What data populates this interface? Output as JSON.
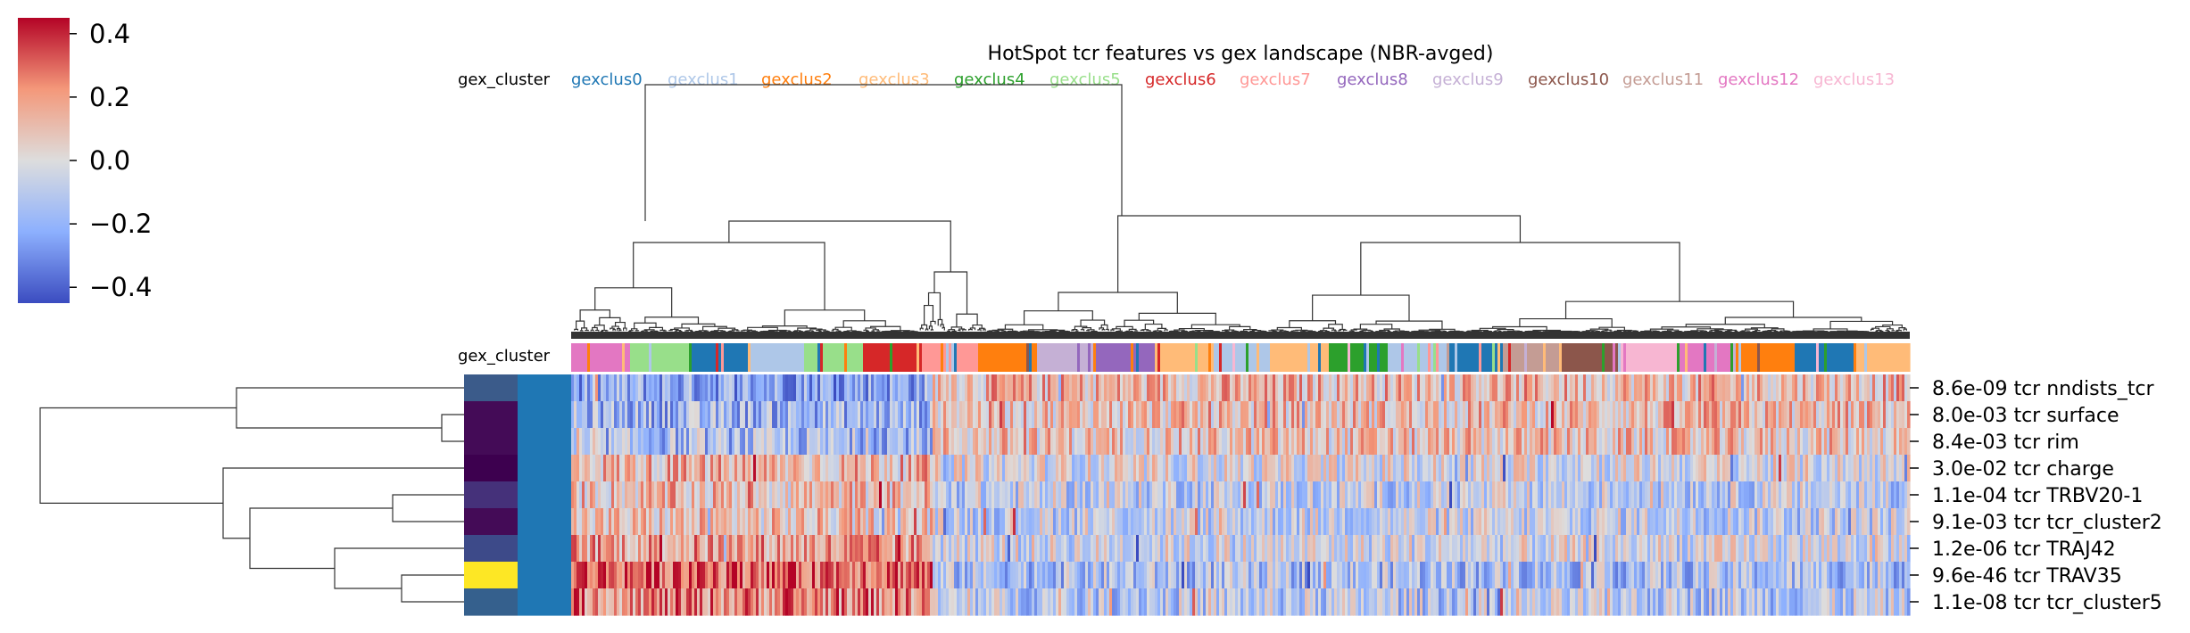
{
  "chart_data": {
    "type": "heatmap",
    "title": "HotSpot tcr features vs gex landscape (NBR-avged)",
    "colorbar": {
      "ticks": [
        "0.4",
        "0.2",
        "0.0",
        "−0.2",
        "−0.4"
      ],
      "tick_values": [
        0.4,
        0.2,
        0.0,
        -0.2,
        -0.4
      ],
      "range": [
        -0.45,
        0.45
      ],
      "colormap": "coolwarm"
    },
    "column_annotation": {
      "label": "gex_cluster",
      "legend": [
        {
          "name": "gexclus0",
          "color": "#1f77b4"
        },
        {
          "name": "gexclus1",
          "color": "#aec7e8"
        },
        {
          "name": "gexclus2",
          "color": "#ff7f0e"
        },
        {
          "name": "gexclus3",
          "color": "#ffbb78"
        },
        {
          "name": "gexclus4",
          "color": "#2ca02c"
        },
        {
          "name": "gexclus5",
          "color": "#98df8a"
        },
        {
          "name": "gexclus6",
          "color": "#d62728"
        },
        {
          "name": "gexclus7",
          "color": "#ff9896"
        },
        {
          "name": "gexclus8",
          "color": "#9467bd"
        },
        {
          "name": "gexclus9",
          "color": "#c5b0d5"
        },
        {
          "name": "gexclus10",
          "color": "#8c564b"
        },
        {
          "name": "gexclus11",
          "color": "#c49c94"
        },
        {
          "name": "gexclus12",
          "color": "#e377c2"
        },
        {
          "name": "gexclus13",
          "color": "#f7b6d2"
        }
      ]
    },
    "row_annotation": {
      "label": "gex_cluster",
      "row_colors_1": [
        "#3b5b8a",
        "#440b57",
        "#440b57",
        "#3d004f",
        "#45317a",
        "#440b57",
        "#3d4a89",
        "#fde725",
        "#35608d"
      ],
      "row_colors_2": [
        "#1f77b4",
        "#1f77b4",
        "#1f77b4",
        "#1f77b4",
        "#1f77b4",
        "#1f77b4",
        "#1f77b4",
        "#1f77b4",
        "#1f77b4"
      ]
    },
    "rows": [
      {
        "label": "8.6e-09 tcr nndists_tcr",
        "left_mean": -0.22,
        "right_mean": 0.12
      },
      {
        "label": "8.0e-03 tcr surface",
        "left_mean": -0.18,
        "right_mean": 0.1
      },
      {
        "label": "8.4e-03 tcr rim",
        "left_mean": -0.16,
        "right_mean": 0.08
      },
      {
        "label": "3.0e-02 tcr charge",
        "left_mean": 0.12,
        "right_mean": -0.02
      },
      {
        "label": "1.1e-04 tcr TRBV20-1",
        "left_mean": 0.1,
        "right_mean": -0.08
      },
      {
        "label": "9.1e-03 tcr tcr_cluster2",
        "left_mean": 0.08,
        "right_mean": -0.07
      },
      {
        "label": "1.2e-06 tcr TRAJ42",
        "left_mean": 0.18,
        "right_mean": -0.04
      },
      {
        "label": "9.6e-46 tcr TRAV35",
        "left_mean": 0.32,
        "right_mean": -0.14
      },
      {
        "label": "1.1e-08 tcr tcr_cluster5",
        "left_mean": 0.24,
        "right_mean": -0.1
      }
    ],
    "column_cluster_order": [
      12,
      5,
      0,
      1,
      5,
      6,
      7,
      2,
      9,
      8,
      3,
      1,
      3,
      4,
      1,
      0,
      11,
      10,
      13,
      12,
      2,
      0,
      3
    ],
    "n_columns": 1520
  }
}
